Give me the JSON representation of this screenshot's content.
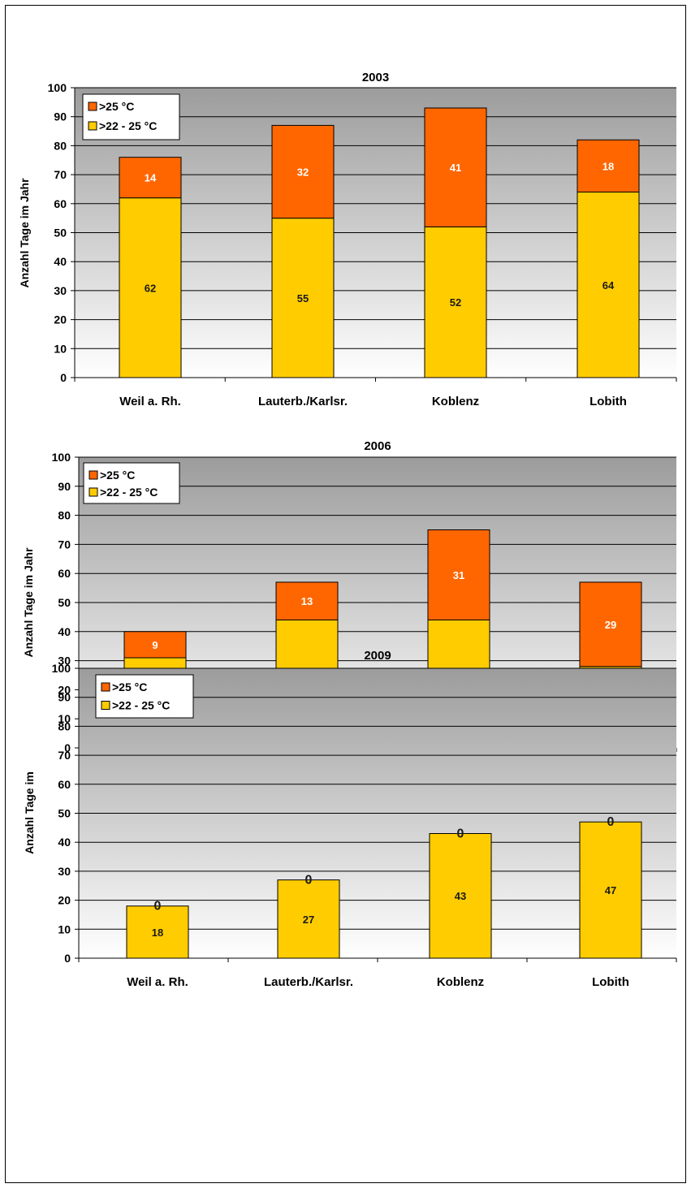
{
  "chart_data": [
    {
      "type": "bar",
      "stacked": true,
      "title": "2003",
      "ylabel": "Anzahl Tage im Jahr",
      "xlabel": "",
      "ylim": [
        0,
        100
      ],
      "yticks": [
        0,
        10,
        20,
        30,
        40,
        50,
        60,
        70,
        80,
        90,
        100
      ],
      "categories": [
        "Weil a. Rh.",
        "Lauterb./Karlsr.",
        "Koblenz",
        "Lobith"
      ],
      "series": [
        {
          "name": ">22 - 25 °C",
          "color": "#FFCC00",
          "label_color": "#1a1a1a",
          "values": [
            62,
            55,
            52,
            64
          ]
        },
        {
          "name": ">25 °C",
          "color": "#FF6600",
          "label_color": "#ffffff",
          "values": [
            14,
            32,
            41,
            18
          ]
        }
      ],
      "legend": "top-left",
      "grid": true
    },
    {
      "type": "bar",
      "stacked": true,
      "title": "2006",
      "ylabel": "Anzahl Tage im Jahr",
      "xlabel": "",
      "ylim": [
        0,
        100
      ],
      "yticks": [
        0,
        10,
        20,
        30,
        40,
        50,
        60,
        70,
        80,
        90,
        100
      ],
      "categories": [
        "Weil a. Rh.",
        "Lauterb./Karlsr.",
        "Koblenz",
        "Lobith"
      ],
      "series": [
        {
          "name": ">22 - 25 °C",
          "color": "#FFCC00",
          "label_color": "#1a1a1a",
          "values": [
            31,
            44,
            44,
            28
          ]
        },
        {
          "name": ">25 °C",
          "color": "#FF6600",
          "label_color": "#ffffff",
          "values": [
            9,
            13,
            31,
            29
          ]
        }
      ],
      "legend": "top-left",
      "grid": true
    },
    {
      "type": "bar",
      "stacked": true,
      "title": "2009",
      "ylabel": "Anzahl Tage im",
      "xlabel": "",
      "ylim": [
        0,
        100
      ],
      "yticks": [
        0,
        10,
        20,
        30,
        40,
        50,
        60,
        70,
        80,
        90,
        100
      ],
      "categories": [
        "Weil a. Rh.",
        "Lauterb./Karlsr.",
        "Koblenz",
        "Lobith"
      ],
      "series": [
        {
          "name": ">22 - 25 °C",
          "color": "#FFCC00",
          "label_color": "#1a1a1a",
          "values": [
            18,
            27,
            43,
            47
          ]
        },
        {
          "name": ">25 °C",
          "color": "#FF6600",
          "label_color": "#1a1a1a",
          "values": [
            0,
            0,
            0,
            0
          ]
        }
      ],
      "legend": "top-left",
      "grid": true
    }
  ]
}
